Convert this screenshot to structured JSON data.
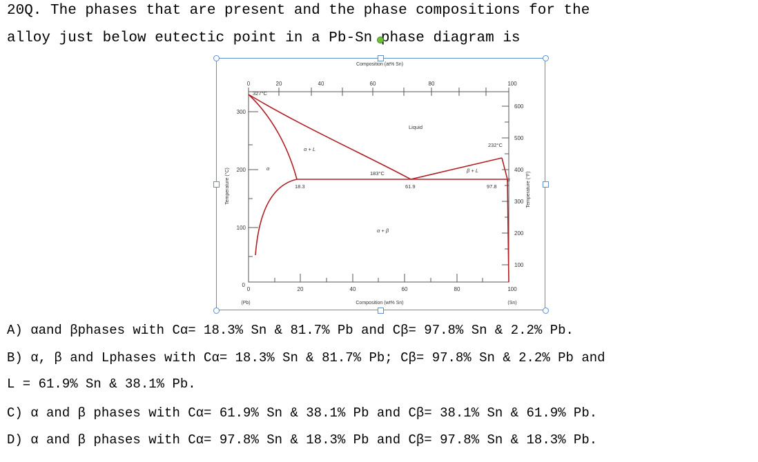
{
  "question": {
    "line1": "20Q. The phases that are present and the phase compositions for the",
    "line2": "alloy just below eutectic point in a Pb-Sn phase diagram is"
  },
  "options": {
    "A": "A) αand βphases with Cα= 18.3% Sn & 81.7% Pb and Cβ= 97.8% Sn & 2.2% Pb.",
    "B1": "B) α, β and Lphases with Cα= 18.3% Sn & 81.7% Pb; Cβ= 97.8% Sn & 2.2% Pb and",
    "B2": "L = 61.9% Sn & 38.1% Pb.",
    "C": "C) α and β phases with Cα= 61.9% Sn & 38.1% Pb and Cβ= 38.1% Sn & 61.9% Pb.",
    "D": "D) α and β phases with Cα= 97.8% Sn & 18.3% Pb and Cβ= 97.8% Sn & 18.3% Pb."
  },
  "diagram": {
    "top_axis_label": "Composition (at% Sn)",
    "bottom_axis_label": "Composition (wt% Sn)",
    "left_axis_label": "Temperature (°C)",
    "right_axis_label": "Temperature (°F)",
    "top_ticks": [
      "0",
      "20",
      "40",
      "60",
      "80",
      "100"
    ],
    "bottom_ticks": [
      "0",
      "20",
      "40",
      "60",
      "80",
      "100"
    ],
    "left_ticks": [
      "0",
      "100",
      "200",
      "300"
    ],
    "right_ticks": [
      "100",
      "200",
      "300",
      "400",
      "500",
      "600"
    ],
    "pb_label": "(Pb)",
    "sn_label": "(Sn)",
    "region_liquid": "Liquid",
    "region_alpha": "α",
    "region_beta": "β",
    "region_alpha_L": "α + L",
    "region_beta_L": "β + L",
    "region_alpha_beta": "α + β",
    "pb_melt": "327°C",
    "sn_melt": "232°C",
    "eutectic_temp": "183°C",
    "alpha_comp": "18.3",
    "eutectic_comp": "61.9",
    "beta_comp": "97.8",
    "line_color": "#b01e23"
  }
}
